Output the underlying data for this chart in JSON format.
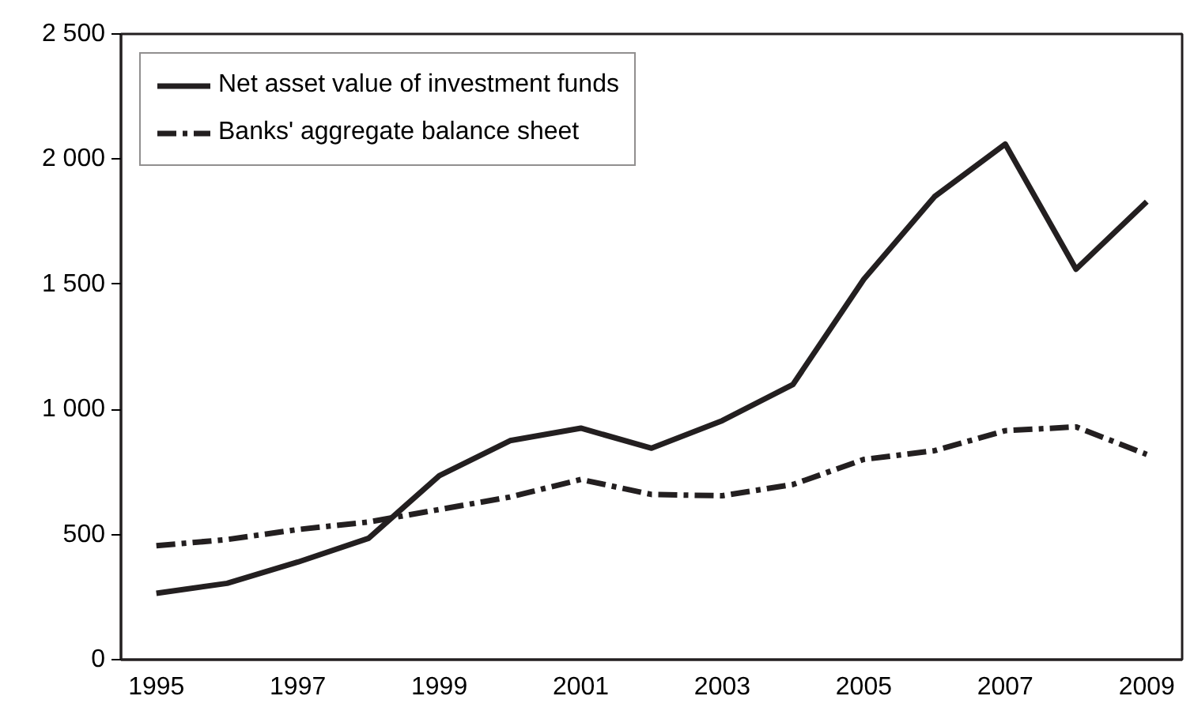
{
  "chart_data": {
    "type": "line",
    "categories": [
      "1995",
      null,
      "1997",
      null,
      "1999",
      null,
      "2001",
      null,
      "2003",
      null,
      "2005",
      null,
      "2007",
      null,
      "2009"
    ],
    "series": [
      {
        "name": "Net asset value of investment funds",
        "color": "#231f20",
        "line_style": "solid",
        "values": [
          265,
          305,
          390,
          485,
          735,
          875,
          925,
          845,
          955,
          1100,
          1520,
          1850,
          2060,
          1560,
          1830
        ]
      },
      {
        "name": "Banks' aggregate balance sheet",
        "color": "#231f20",
        "line_style": "dashdot",
        "values": [
          455,
          480,
          520,
          550,
          600,
          650,
          720,
          660,
          655,
          700,
          800,
          835,
          915,
          930,
          820
        ]
      }
    ],
    "ylim": [
      0,
      2500
    ],
    "yticks": [
      0,
      500,
      {
        "value": 1000,
        "label": "1 000"
      },
      {
        "value": 1500,
        "label": "1 500"
      },
      {
        "value": 2000,
        "label": "2 000"
      },
      {
        "value": 2500,
        "label": "2 500"
      }
    ],
    "grid": false,
    "legend": "top left"
  }
}
